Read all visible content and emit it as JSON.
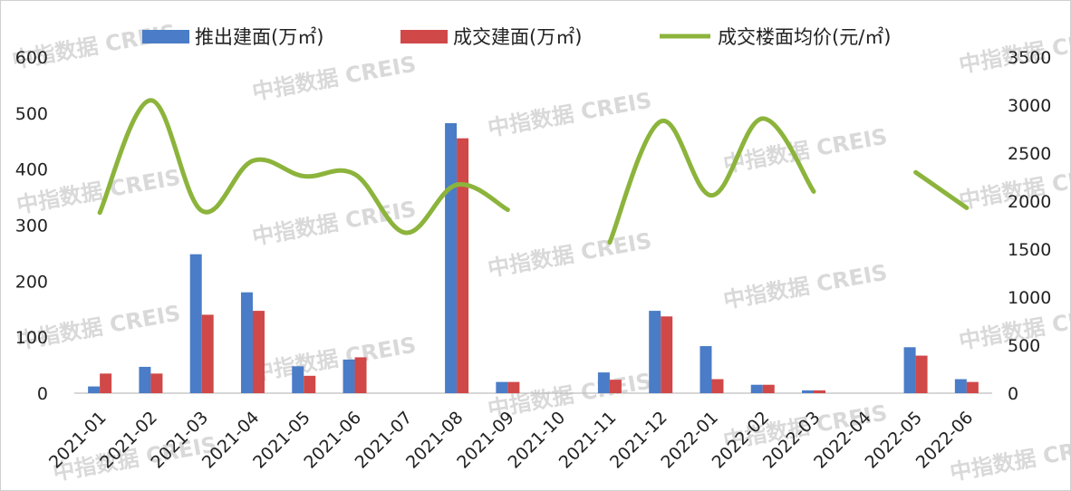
{
  "watermark": "中指数据 CREIS",
  "colors": {
    "supply": "#4a7cc7",
    "deal": "#d04848",
    "price": "#8cb43c",
    "axis": "#bfbfbf"
  },
  "chart_data": {
    "type": "bar",
    "title": "",
    "categories": [
      "2021-01",
      "2021-02",
      "2021-03",
      "2021-04",
      "2021-05",
      "2021-06",
      "2021-07",
      "2021-08",
      "2021-09",
      "2021-10",
      "2021-11",
      "2021-12",
      "2022-01",
      "2022-02",
      "2022-03",
      "2022-04",
      "2022-05",
      "2022-06"
    ],
    "y_left": {
      "min": 0,
      "max": 600,
      "ticks": [
        0,
        100,
        200,
        300,
        400,
        500,
        600
      ]
    },
    "y_right": {
      "min": 0,
      "max": 3500,
      "ticks": [
        0,
        500,
        1000,
        1500,
        2000,
        2500,
        3000,
        3500
      ]
    },
    "grid": false,
    "legend_position": "top",
    "series": [
      {
        "name": "推出建面(万㎡)",
        "type": "bar",
        "axis": "left",
        "values": [
          12,
          47,
          248,
          180,
          48,
          60,
          0,
          482,
          20,
          0,
          37,
          147,
          84,
          15,
          5,
          0,
          82,
          25
        ]
      },
      {
        "name": "成交建面(万㎡)",
        "type": "bar",
        "axis": "left",
        "values": [
          35,
          35,
          140,
          147,
          31,
          64,
          0,
          455,
          20,
          0,
          24,
          137,
          25,
          15,
          5,
          0,
          67,
          20
        ]
      },
      {
        "name": "成交楼面均价(元/㎡)",
        "type": "line",
        "axis": "right",
        "smooth": true,
        "values": [
          1880,
          3050,
          1900,
          2420,
          2260,
          2280,
          1670,
          2170,
          1910,
          null,
          1570,
          2830,
          2060,
          2860,
          2100,
          null,
          2300,
          1930
        ]
      }
    ]
  }
}
